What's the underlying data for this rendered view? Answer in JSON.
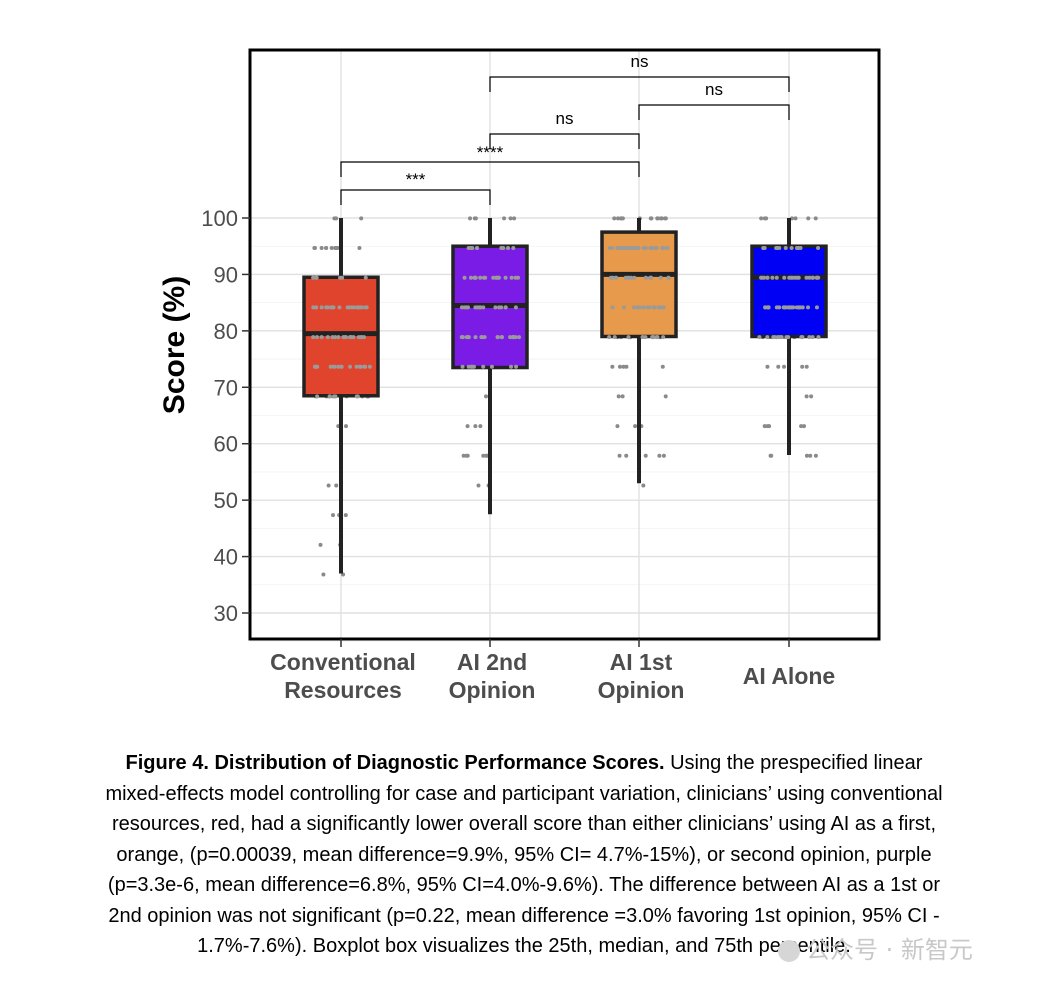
{
  "chart_data": {
    "type": "box",
    "ylabel": "Score (%)",
    "xlabel": "",
    "ylim": [
      25,
      100
    ],
    "yticks": [
      30,
      40,
      50,
      60,
      70,
      80,
      90,
      100
    ],
    "grid": true,
    "categories": [
      {
        "line1": "Conventional",
        "line2": "Resources"
      },
      {
        "line1": "AI 2nd",
        "line2": "Opinion"
      },
      {
        "line1": "AI 1st",
        "line2": "Opinion"
      },
      {
        "line1": "AI Alone",
        "line2": ""
      }
    ],
    "series": [
      {
        "color": "#e0442c",
        "min": 37,
        "q1": 68.5,
        "median": 79.5,
        "q3": 89.5,
        "max": 100
      },
      {
        "color": "#7a1ce6",
        "min": 47.5,
        "q1": 73.5,
        "median": 84.5,
        "q3": 95,
        "max": 100
      },
      {
        "color": "#e89a4c",
        "min": 53,
        "q1": 79,
        "median": 90,
        "q3": 97.5,
        "max": 100
      },
      {
        "color": "#0000f5",
        "min": 58,
        "q1": 79,
        "median": 89.5,
        "q3": 95,
        "max": 100
      }
    ],
    "comparisons": [
      {
        "from": 0,
        "to": 1,
        "label": "***"
      },
      {
        "from": 0,
        "to": 2,
        "label": "****"
      },
      {
        "from": 1,
        "to": 2,
        "label": "ns"
      },
      {
        "from": 2,
        "to": 3,
        "label": "ns"
      },
      {
        "from": 1,
        "to": 3,
        "label": "ns"
      }
    ]
  },
  "caption": {
    "title": "Figure 4. Distribution of Diagnostic Performance Scores.",
    "lines": [
      " Using the prespecified linear",
      "mixed-effects model controlling for case and participant variation, clinicians’ using conventional",
      "resources, red, had a significantly lower overall score than either clinicians’ using AI as a first,",
      "orange, (p=0.00039, mean difference=9.9%, 95% CI= 4.7%-15%), or second opinion, purple",
      "(p=3.3e-6, mean difference=6.8%, 95% CI=4.0%-9.6%). The difference between AI as a 1st or",
      "2nd opinion was not significant (p=0.22, mean difference =3.0% favoring 1st opinion, 95% CI -",
      "1.7%-7.6%). Boxplot box visualizes the 25th, median, and 75th percentile."
    ]
  },
  "watermark": "公众号 · 新智元"
}
